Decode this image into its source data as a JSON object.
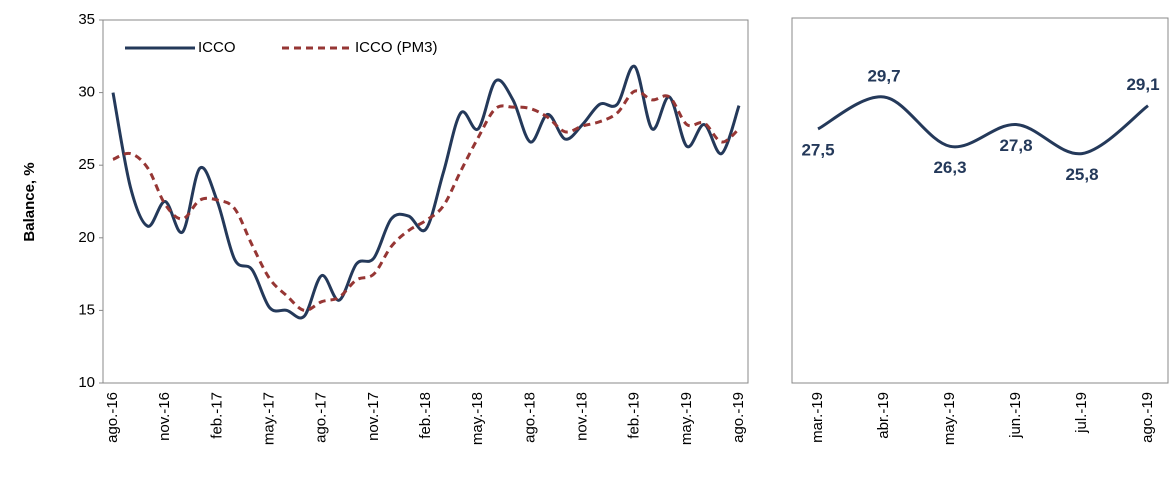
{
  "chart_data": [
    {
      "type": "line",
      "y_label": "Balance, %",
      "categories": [
        "ago.-16",
        null,
        null,
        "nov.-16",
        null,
        null,
        "feb.-17",
        null,
        null,
        "may.-17",
        null,
        null,
        "ago.-17",
        null,
        null,
        "nov.-17",
        null,
        null,
        "feb.-18",
        null,
        null,
        "may.-18",
        null,
        null,
        "ago.-18",
        null,
        null,
        "nov.-18",
        null,
        null,
        "feb.-19",
        null,
        null,
        "may.-19",
        null,
        null,
        "ago.-19"
      ],
      "series": [
        {
          "name": "ICCO",
          "color": "#24395a",
          "dashed": false,
          "values": [
            30.0,
            23.5,
            20.8,
            22.5,
            20.4,
            24.8,
            22.5,
            18.5,
            17.8,
            15.2,
            15.0,
            14.6,
            17.4,
            15.7,
            18.2,
            18.6,
            21.3,
            21.5,
            20.6,
            24.5,
            28.6,
            27.5,
            30.8,
            29.5,
            26.6,
            28.5,
            26.8,
            27.8,
            29.2,
            29.2,
            31.8,
            27.5,
            29.7,
            26.3,
            27.8,
            25.8,
            29.1
          ]
        },
        {
          "name": "ICCO (PM3)",
          "color": "#963634",
          "dashed": true,
          "values": [
            25.4,
            25.8,
            24.8,
            22.3,
            21.3,
            22.6,
            22.6,
            22.0,
            19.5,
            17.2,
            16.0,
            15.0,
            15.6,
            15.9,
            17.1,
            17.5,
            19.4,
            20.5,
            21.2,
            22.2,
            24.6,
            26.9,
            28.9,
            29.0,
            28.9,
            28.3,
            27.3,
            27.7,
            28.0,
            28.6,
            30.1,
            29.5,
            29.7,
            27.8,
            27.9,
            26.6,
            27.5
          ]
        }
      ],
      "ylim": [
        10,
        35
      ],
      "yticks": [
        10,
        15,
        20,
        25,
        30,
        35
      ],
      "legend": "top-left"
    },
    {
      "type": "line",
      "categories": [
        "mar.-19",
        "abr.-19",
        "may.-19",
        "jun.-19",
        "jul.-19",
        "ago.-19"
      ],
      "series": [
        {
          "color": "#24395a",
          "values": [
            27.5,
            29.7,
            26.3,
            27.8,
            25.8,
            29.1
          ],
          "value_labels": [
            "27,5",
            "29,7",
            "26,3",
            "27,8",
            "25,8",
            "29,1"
          ]
        }
      ],
      "ylim": [
        10,
        35
      ]
    }
  ]
}
